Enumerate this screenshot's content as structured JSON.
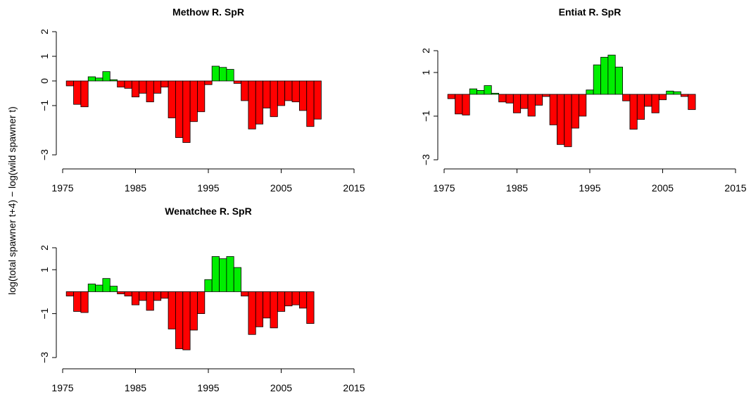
{
  "chart_data": [
    {
      "type": "bar",
      "title": "Methow R. SpR",
      "ylabel": "log(total spawner t+4) − log(wild spawner t)",
      "x": [
        1976,
        1977,
        1978,
        1979,
        1980,
        1981,
        1982,
        1983,
        1984,
        1985,
        1986,
        1987,
        1988,
        1989,
        1990,
        1991,
        1992,
        1993,
        1994,
        1995,
        1996,
        1997,
        1998,
        1999,
        2000,
        2001,
        2002,
        2003,
        2004,
        2005,
        2006,
        2007,
        2008,
        2009,
        2010
      ],
      "values": [
        -0.2,
        -0.95,
        -1.05,
        0.17,
        0.12,
        0.38,
        0.05,
        -0.25,
        -0.3,
        -0.65,
        -0.5,
        -0.85,
        -0.5,
        -0.25,
        -1.5,
        -2.3,
        -2.5,
        -1.65,
        -1.25,
        -0.15,
        0.6,
        0.55,
        0.47,
        -0.1,
        -0.8,
        -1.95,
        -1.75,
        -1.1,
        -1.45,
        -1.0,
        -0.8,
        -0.85,
        -1.2,
        -1.85,
        -1.55
      ],
      "colors": {
        "positive": "#00ee00",
        "negative": "#ff0000"
      },
      "xlim": [
        1975,
        2015
      ],
      "xticks": [
        1975,
        1985,
        1995,
        2005,
        2015
      ],
      "ylim": [
        -3,
        2
      ],
      "yticks": [
        {
          "value": -3,
          "label": "−3"
        },
        {
          "value": -1,
          "label": "−1"
        },
        0,
        1,
        2
      ]
    },
    {
      "type": "bar",
      "title": "Entiat R. SpR",
      "x": [
        1976,
        1977,
        1978,
        1979,
        1980,
        1981,
        1982,
        1983,
        1984,
        1985,
        1986,
        1987,
        1988,
        1989,
        1990,
        1991,
        1992,
        1993,
        1994,
        1995,
        1996,
        1997,
        1998,
        1999,
        2000,
        2001,
        2002,
        2003,
        2004,
        2005,
        2006,
        2007,
        2008,
        2009
      ],
      "values": [
        -0.2,
        -0.9,
        -0.95,
        0.25,
        0.18,
        0.4,
        0.05,
        -0.35,
        -0.4,
        -0.85,
        -0.65,
        -1.0,
        -0.5,
        -0.1,
        -1.4,
        -2.3,
        -2.4,
        -1.55,
        -1.0,
        0.2,
        1.35,
        1.7,
        1.8,
        1.25,
        -0.3,
        -1.6,
        -1.15,
        -0.55,
        -0.85,
        -0.25,
        0.15,
        0.12,
        -0.1,
        -0.7
      ],
      "colors": {
        "positive": "#00ee00",
        "negative": "#ff0000"
      },
      "xlim": [
        1975,
        2015
      ],
      "xticks": [
        1975,
        1985,
        1995,
        2005,
        2015
      ],
      "ylim": [
        -3,
        2
      ],
      "yticks": [
        {
          "value": -3,
          "label": "−3"
        },
        {
          "value": -1,
          "label": "−1"
        },
        1,
        2
      ]
    },
    {
      "type": "bar",
      "title": "Wenatchee R. SpR",
      "x": [
        1976,
        1977,
        1978,
        1979,
        1980,
        1981,
        1982,
        1983,
        1984,
        1985,
        1986,
        1987,
        1988,
        1989,
        1990,
        1991,
        1992,
        1993,
        1994,
        1995,
        1996,
        1997,
        1998,
        1999,
        2000,
        2001,
        2002,
        2003,
        2004,
        2005,
        2006,
        2007,
        2008,
        2009
      ],
      "values": [
        -0.2,
        -0.9,
        -0.95,
        0.35,
        0.3,
        0.6,
        0.25,
        -0.1,
        -0.2,
        -0.6,
        -0.4,
        -0.85,
        -0.4,
        -0.3,
        -1.7,
        -2.6,
        -2.65,
        -1.75,
        -1.0,
        0.55,
        1.6,
        1.5,
        1.6,
        1.1,
        -0.2,
        -1.95,
        -1.6,
        -1.2,
        -1.65,
        -0.9,
        -0.65,
        -0.6,
        -0.75,
        -1.45
      ],
      "colors": {
        "positive": "#00ee00",
        "negative": "#ff0000"
      },
      "xlim": [
        1975,
        2015
      ],
      "xticks": [
        1975,
        1985,
        1995,
        2005,
        2015
      ],
      "ylim": [
        -3,
        2
      ],
      "yticks": [
        {
          "value": -3,
          "label": "−3"
        },
        {
          "value": -1,
          "label": "−1"
        },
        1,
        2
      ]
    }
  ]
}
